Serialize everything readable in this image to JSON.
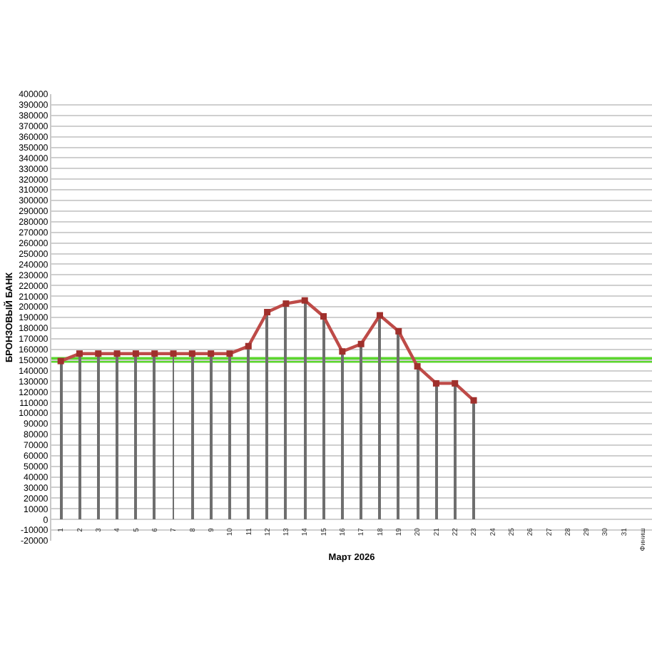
{
  "chart_data": {
    "type": "line",
    "xlabel": "Март 2026",
    "ylabel": "БРОНЗОВЫЙ БАНК",
    "categories": [
      "1",
      "2",
      "3",
      "4",
      "5",
      "6",
      "7",
      "8",
      "9",
      "10",
      "11",
      "12",
      "13",
      "14",
      "15",
      "16",
      "17",
      "18",
      "19",
      "20",
      "21",
      "22",
      "23",
      "24",
      "25",
      "26",
      "27",
      "28",
      "29",
      "30",
      "31",
      "Финиш"
    ],
    "series": [
      {
        "type": "bar",
        "color": "#6e6e6e",
        "values": [
          149000,
          156000,
          156000,
          156000,
          156000,
          156000,
          156000,
          156000,
          156000,
          156000,
          163000,
          195000,
          203000,
          206000,
          191000,
          158000,
          165000,
          192000,
          177000,
          144000,
          128000,
          128000,
          112000,
          null,
          null,
          null,
          null,
          null,
          null,
          null,
          null,
          null
        ]
      },
      {
        "color": "#be4b48",
        "values": [
          149000,
          156000,
          156000,
          156000,
          156000,
          156000,
          156000,
          156000,
          156000,
          156000,
          163000,
          195000,
          203000,
          206000,
          191000,
          158000,
          165000,
          192000,
          177000,
          144000,
          128000,
          128000,
          112000,
          null,
          null,
          null,
          null,
          null,
          null,
          null,
          null,
          null
        ]
      }
    ],
    "ylim": [
      -20000,
      400000
    ],
    "yticks": [
      -20000,
      -10000,
      0,
      10000,
      20000,
      30000,
      40000,
      50000,
      60000,
      70000,
      80000,
      90000,
      100000,
      110000,
      120000,
      130000,
      140000,
      150000,
      160000,
      170000,
      180000,
      190000,
      200000,
      210000,
      220000,
      230000,
      240000,
      250000,
      260000,
      270000,
      280000,
      290000,
      300000,
      310000,
      320000,
      330000,
      340000,
      350000,
      360000,
      370000,
      380000,
      390000,
      400000
    ],
    "grid": "y",
    "marker": "square",
    "line_style": "solid",
    "ref_lines": [
      {
        "axis": "y",
        "value": 150000,
        "color": "#5cd62e"
      }
    ]
  }
}
